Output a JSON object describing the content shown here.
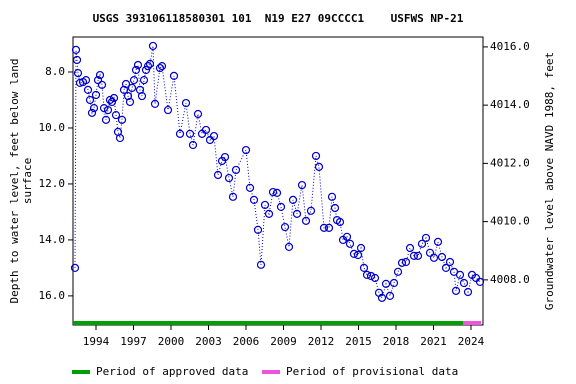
{
  "chart_data": {
    "type": "scatter",
    "title": "USGS 393106118580301 101  N19 E27 09CCCC1    USFWS NP-21",
    "ylabel": [
      "Depth to water level, feet below land",
      "surface"
    ],
    "y2label": "Groundwater level above NAVD 1988, feet",
    "color": "#0000cc",
    "x": [
      1992.32,
      1992.4,
      1992.48,
      1992.56,
      1992.72,
      1992.96,
      1993.2,
      1993.36,
      1993.52,
      1993.68,
      1993.84,
      1994.0,
      1994.16,
      1994.32,
      1994.48,
      1994.64,
      1994.8,
      1994.96,
      1995.12,
      1995.28,
      1995.44,
      1995.6,
      1995.76,
      1995.92,
      1996.08,
      1996.24,
      1996.4,
      1996.56,
      1996.72,
      1996.88,
      1997.04,
      1997.2,
      1997.36,
      1997.52,
      1997.68,
      1997.84,
      1998.0,
      1998.16,
      1998.32,
      1998.56,
      1998.72,
      1999.12,
      1999.28,
      1999.76,
      2000.24,
      2000.72,
      2001.2,
      2001.52,
      2001.76,
      2002.16,
      2002.48,
      2002.8,
      2003.12,
      2003.44,
      2003.76,
      2004.08,
      2004.32,
      2004.64,
      2004.96,
      2005.2,
      2006.0,
      2006.32,
      2006.64,
      2006.96,
      2007.2,
      2007.52,
      2007.84,
      2008.16,
      2008.48,
      2008.8,
      2009.12,
      2009.44,
      2009.76,
      2010.08,
      2010.48,
      2010.8,
      2011.2,
      2011.6,
      2011.84,
      2012.24,
      2012.64,
      2012.88,
      2013.12,
      2013.28,
      2013.52,
      2013.76,
      2014.08,
      2014.32,
      2014.64,
      2014.96,
      2015.2,
      2015.44,
      2015.68,
      2016.0,
      2016.32,
      2016.64,
      2016.88,
      2017.2,
      2017.52,
      2017.84,
      2018.16,
      2018.48,
      2018.8,
      2019.12,
      2019.44,
      2019.76,
      2020.08,
      2020.4,
      2020.72,
      2021.04,
      2021.36,
      2021.68,
      2022.0,
      2022.32,
      2022.64,
      2022.8,
      2023.12,
      2023.44,
      2023.76,
      2024.08,
      2024.4,
      2024.72
    ],
    "values": [
      15.0,
      7.21,
      7.57,
      8.04,
      8.39,
      8.36,
      8.29,
      8.64,
      9.0,
      9.46,
      9.29,
      8.82,
      8.29,
      8.11,
      8.46,
      9.29,
      9.71,
      9.36,
      9.0,
      9.07,
      8.93,
      9.54,
      10.14,
      10.36,
      9.71,
      8.64,
      8.43,
      8.86,
      9.07,
      8.57,
      8.29,
      7.93,
      7.75,
      8.64,
      8.86,
      8.29,
      7.93,
      7.79,
      7.71,
      7.07,
      9.14,
      7.86,
      7.79,
      9.36,
      8.14,
      10.21,
      9.11,
      10.21,
      10.61,
      9.5,
      10.21,
      10.07,
      10.43,
      10.29,
      11.68,
      11.18,
      11.04,
      11.79,
      12.46,
      11.5,
      10.79,
      12.14,
      12.57,
      13.64,
      14.89,
      12.75,
      13.07,
      12.29,
      12.32,
      12.82,
      13.54,
      14.25,
      12.57,
      13.07,
      12.04,
      13.32,
      12.96,
      11.0,
      11.39,
      13.57,
      13.57,
      12.46,
      12.86,
      13.29,
      13.36,
      14.0,
      13.89,
      14.14,
      14.5,
      14.54,
      14.29,
      15.0,
      15.25,
      15.29,
      15.36,
      15.89,
      16.07,
      15.57,
      16.0,
      15.54,
      15.14,
      14.82,
      14.79,
      14.29,
      14.57,
      14.57,
      14.14,
      13.93,
      14.46,
      14.64,
      14.07,
      14.61,
      15.0,
      14.79,
      15.14,
      15.82,
      15.25,
      15.54,
      15.86,
      15.25,
      15.36,
      15.5
    ],
    "xlim": [
      1992.16,
      2024.96
    ],
    "xticks": [
      1994,
      1997,
      2000,
      2003,
      2006,
      2009,
      2012,
      2015,
      2018,
      2021,
      2024
    ],
    "ylim": [
      17.04,
      6.75
    ],
    "yticks": [
      {
        "value": 8,
        "label": "8.0"
      },
      {
        "value": 10,
        "label": "10.0"
      },
      {
        "value": 12,
        "label": "12.0"
      },
      {
        "value": 14,
        "label": "14.0"
      },
      {
        "value": 16,
        "label": "16.0"
      }
    ],
    "y2lim": [
      4006.45,
      4016.34
    ],
    "y2ticks": [
      {
        "value": 4008,
        "label": "4008.0"
      },
      {
        "value": 4010,
        "label": "4010.0"
      },
      {
        "value": 4012,
        "label": "4012.0"
      },
      {
        "value": 4014,
        "label": "4014.0"
      },
      {
        "value": 4016,
        "label": "4016.0"
      }
    ],
    "periods": [
      {
        "name": "Period of approved data",
        "color": "#00a000",
        "x": [
          1992.16,
          2023.36
        ]
      },
      {
        "name": "Period of provisional data",
        "color": "#ee55dd",
        "x": [
          2023.36,
          2024.8
        ]
      }
    ]
  }
}
